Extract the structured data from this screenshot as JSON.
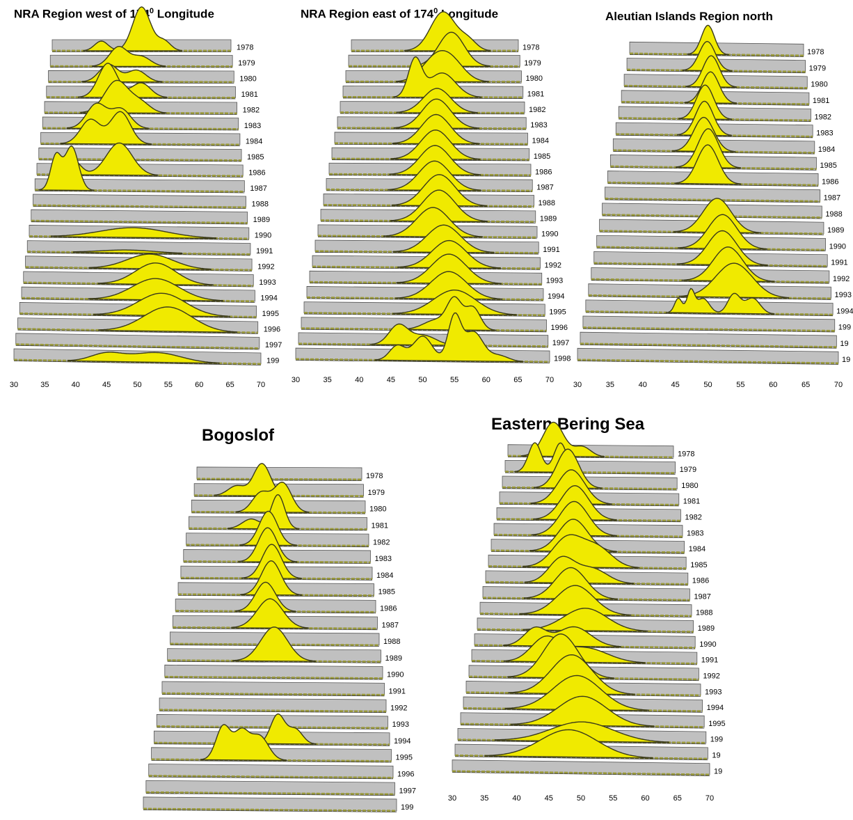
{
  "titles": {
    "p1": {
      "pre": "NRA Region west of 174",
      "sup": "0",
      "post": " Longitude"
    },
    "p2": {
      "pre": "NRA Region east of 174",
      "sup": "0",
      "post": " Longitude"
    },
    "p3": {
      "pre": "Aleutian Islands Region north",
      "sup": "",
      "post": ""
    },
    "p4": {
      "pre": "Bogoslof",
      "sup": "",
      "post": ""
    },
    "p5": {
      "pre": "Eastern Bering Sea",
      "sup": "",
      "post": ""
    }
  },
  "colors": {
    "fill": "#f0ea00",
    "floor": "#c0c0c0",
    "outline": "#3a3a1a",
    "dashes": "#9a9a3a"
  },
  "chart_data": [
    {
      "id": "p1",
      "type": "area",
      "xlim": [
        30,
        70
      ],
      "xticks": [
        30,
        35,
        40,
        45,
        50,
        55,
        60,
        65,
        70
      ],
      "years": [
        "1978",
        "1979",
        "1980",
        "1981",
        "1982",
        "1983",
        "1984",
        "1985",
        "1986",
        "1987",
        "1988",
        "1989",
        "1990",
        "1991",
        "1992",
        "1993",
        "1994",
        "1995",
        "1996",
        "1997",
        "199"
      ],
      "series": [
        {
          "peaks": [
            [
              50,
              4.5,
              2
            ],
            [
              41,
              1,
              1.5
            ],
            [
              55,
              1,
              1.5
            ]
          ]
        },
        {
          "peaks": [
            [
              45,
              2,
              2
            ],
            [
              50,
              1,
              2
            ]
          ]
        },
        {
          "peaks": [
            [
              43,
              1.8,
              2
            ],
            [
              49,
              1.2,
              2
            ]
          ]
        },
        {
          "peaks": [
            [
              43,
              3.5,
              2
            ],
            [
              50,
              1.5,
              2
            ]
          ]
        },
        {
          "peaks": [
            [
              45,
              3.3,
              2.5
            ],
            [
              50,
              1,
              2
            ]
          ]
        },
        {
          "peaks": [
            [
              41,
              2.5,
              2
            ],
            [
              46,
              2,
              2
            ]
          ]
        },
        {
          "peaks": [
            [
              40,
              2.5,
              2
            ],
            [
              46,
              3.3,
              2
            ]
          ]
        },
        {
          "peaks": []
        },
        {
          "peaks": [
            [
              37,
              1.5,
              1.5
            ],
            [
              46,
              3.3,
              2.5
            ]
          ]
        },
        {
          "peaks": [
            [
              34,
              3.5,
              1
            ],
            [
              37,
              4.5,
              1.3
            ]
          ]
        },
        {
          "peaks": []
        },
        {
          "peaks": []
        },
        {
          "peaks": [
            [
              49,
              1,
              6
            ]
          ]
        },
        {
          "peaks": [
            [
              48,
              0.3,
              5
            ]
          ]
        },
        {
          "peaks": [
            [
              52,
              1.5,
              4
            ]
          ]
        },
        {
          "peaks": [
            [
              53,
              2.2,
              3.5
            ]
          ]
        },
        {
          "peaks": [
            [
              53,
              2.2,
              4
            ]
          ]
        },
        {
          "peaks": [
            [
              54,
              2.3,
              4
            ]
          ]
        },
        {
          "peaks": [
            [
              55,
              2.5,
              4
            ]
          ]
        },
        {
          "peaks": []
        },
        {
          "peaks": [
            [
              45,
              0.8,
              2.5
            ],
            [
              53,
              1,
              4
            ]
          ]
        }
      ]
    },
    {
      "id": "p2",
      "type": "area",
      "xlim": [
        30,
        70
      ],
      "xticks": [
        30,
        35,
        40,
        45,
        50,
        55,
        60,
        65,
        70
      ],
      "years": [
        "1978",
        "1979",
        "1980",
        "1981",
        "1982",
        "1983",
        "1984",
        "1985",
        "1986",
        "1987",
        "1988",
        "1989",
        "1990",
        "1991",
        "1992",
        "1993",
        "1994",
        "1995",
        "1996",
        "1997",
        "1998"
      ],
      "series": [
        {
          "peaks": [
            [
              52,
              4,
              3
            ],
            [
              58,
              1,
              2
            ]
          ]
        },
        {
          "peaks": [
            [
              54,
              3.5,
              3
            ]
          ]
        },
        {
          "peaks": [
            [
              50,
              2,
              3
            ],
            [
              54,
              2,
              3
            ]
          ]
        },
        {
          "peaks": [
            [
              46,
              3.8,
              1.5
            ],
            [
              52,
              2.5,
              3
            ]
          ]
        },
        {
          "peaks": [
            [
              51,
              2.5,
              3
            ]
          ]
        },
        {
          "peaks": [
            [
              51,
              3,
              3
            ]
          ]
        },
        {
          "peaks": [
            [
              51,
              3,
              3
            ]
          ]
        },
        {
          "peaks": [
            [
              51,
              3,
              3
            ]
          ]
        },
        {
          "peaks": [
            [
              51,
              3,
              3
            ]
          ]
        },
        {
          "peaks": [
            [
              51,
              3,
              3
            ]
          ]
        },
        {
          "peaks": [
            [
              52,
              3.2,
              3
            ]
          ]
        },
        {
          "peaks": [
            [
              52,
              3.2,
              3
            ]
          ]
        },
        {
          "peaks": [
            [
              51,
              3,
              3
            ]
          ]
        },
        {
          "peaks": [
            [
              53,
              2.8,
              3
            ]
          ]
        },
        {
          "peaks": [
            [
              54,
              2.8,
              3
            ]
          ]
        },
        {
          "peaks": [
            [
              54,
              3,
              3
            ]
          ]
        },
        {
          "peaks": [
            [
              54,
              2.8,
              3
            ]
          ]
        },
        {
          "peaks": [
            [
              55,
              2.5,
              3.5
            ]
          ]
        },
        {
          "peaks": [
            [
              55,
              3,
              1.2
            ],
            [
              58,
              2.3,
              1.2
            ],
            [
              52,
              1,
              2
            ]
          ]
        },
        {
          "peaks": [
            [
              46,
              2,
              1.5
            ],
            [
              50,
              1,
              2
            ]
          ]
        },
        {
          "peaks": [
            [
              46,
              1.5,
              1.2
            ],
            [
              50,
              2.5,
              1.5
            ],
            [
              55,
              4.5,
              1
            ],
            [
              58,
              3,
              1.5
            ],
            [
              62,
              0.6,
              1.5
            ]
          ]
        }
      ]
    },
    {
      "id": "p3",
      "type": "area",
      "xlim": [
        30,
        70
      ],
      "xticks": [
        30,
        35,
        40,
        45,
        50,
        55,
        60,
        65,
        70
      ],
      "years": [
        "1978",
        "1979",
        "1980",
        "1981",
        "1982",
        "1983",
        "1984",
        "1985",
        "1986",
        "1987",
        "1988",
        "1989",
        "1990",
        "1991",
        "1992",
        "1993",
        "1994",
        "199",
        "19",
        "19"
      ],
      "series": [
        {
          "peaks": [
            [
              48,
              3,
              1.5
            ]
          ]
        },
        {
          "peaks": [
            [
              48,
              3,
              1.8
            ]
          ]
        },
        {
          "peaks": [
            [
              49,
              3.2,
              1.8
            ]
          ]
        },
        {
          "peaks": [
            [
              49,
              3.2,
              1.8
            ]
          ]
        },
        {
          "peaks": [
            [
              48,
              3.5,
              1.8
            ]
          ]
        },
        {
          "peaks": [
            [
              48,
              3.5,
              1.8
            ]
          ]
        },
        {
          "peaks": [
            [
              48,
              3.5,
              2
            ]
          ]
        },
        {
          "peaks": [
            [
              49,
              4,
              2
            ]
          ]
        },
        {
          "peaks": [
            [
              49,
              4,
              2
            ]
          ]
        },
        {
          "peaks": []
        },
        {
          "peaks": []
        },
        {
          "peaks": [
            [
              51,
              3.5,
              2.5
            ]
          ]
        },
        {
          "peaks": [
            [
              52,
              3.5,
              2.5
            ]
          ]
        },
        {
          "peaks": [
            [
              52,
              3.5,
              2.5
            ]
          ]
        },
        {
          "peaks": [
            [
              53,
              3.5,
              2.5
            ]
          ]
        },
        {
          "peaks": [
            [
              54,
              3.5,
              3
            ]
          ]
        },
        {
          "peaks": [
            [
              45,
              1.5,
              0.6
            ],
            [
              47,
              2.3,
              0.6
            ],
            [
              49,
              1.5,
              1
            ],
            [
              54,
              2,
              1
            ],
            [
              57,
              1.6,
              1.2
            ]
          ]
        },
        {
          "peaks": []
        },
        {
          "peaks": []
        },
        {
          "peaks": []
        }
      ]
    },
    {
      "id": "p4",
      "type": "area",
      "xlim": [
        30,
        70
      ],
      "xticks": [
        30,
        35,
        40,
        45,
        50,
        55,
        60,
        65,
        70
      ],
      "years": [
        "1978",
        "1979",
        "1980",
        "1981",
        "1982",
        "1983",
        "1984",
        "1985",
        "1986",
        "1987",
        "1988",
        "1989",
        "1990",
        "1991",
        "1992",
        "1993",
        "1994",
        "1995",
        "1996",
        "1997",
        "199"
      ],
      "series": [
        {
          "peaks": []
        },
        {
          "peaks": [
            [
              46,
              3.3,
              2
            ],
            [
              40,
              1,
              2
            ]
          ]
        },
        {
          "peaks": [
            [
              51,
              3,
              2
            ],
            [
              46,
              2,
              2
            ]
          ]
        },
        {
          "peaks": [
            [
              50,
              3.5,
              1.5
            ],
            [
              44,
              1,
              2
            ]
          ]
        },
        {
          "peaks": [
            [
              48,
              3.5,
              2
            ]
          ]
        },
        {
          "peaks": [
            [
              48,
              3.5,
              2
            ]
          ]
        },
        {
          "peaks": [
            [
              49,
              3.5,
              2
            ]
          ]
        },
        {
          "peaks": [
            [
              49,
              3.5,
              2
            ]
          ]
        },
        {
          "peaks": [
            [
              48,
              3,
              2
            ]
          ]
        },
        {
          "peaks": [
            [
              49,
              3,
              2.5
            ]
          ]
        },
        {
          "peaks": []
        },
        {
          "peaks": [
            [
              50,
              3.5,
              2.5
            ]
          ]
        },
        {
          "peaks": []
        },
        {
          "peaks": []
        },
        {
          "peaks": []
        },
        {
          "peaks": []
        },
        {
          "peaks": [
            [
              51,
              3,
              1.2
            ],
            [
              54,
              1.5,
              1.2
            ]
          ]
        },
        {
          "peaks": [
            [
              42,
              3.5,
              1.2
            ],
            [
              45,
              2.8,
              1.2
            ],
            [
              48,
              2.5,
              1.5
            ]
          ]
        },
        {
          "peaks": []
        },
        {
          "peaks": []
        },
        {
          "peaks": []
        }
      ]
    },
    {
      "id": "p5",
      "type": "area",
      "xlim": [
        30,
        70
      ],
      "xticks": [
        30,
        35,
        40,
        45,
        50,
        55,
        60,
        65,
        70
      ],
      "years": [
        "1978",
        "1979",
        "1980",
        "1981",
        "1982",
        "1983",
        "1984",
        "1985",
        "1986",
        "1987",
        "1988",
        "1989",
        "1990",
        "1991",
        "1992",
        "1993",
        "1994",
        "1995",
        "199",
        "19",
        "19"
      ],
      "series": [
        {
          "peaks": [
            [
              41,
              3.5,
              2.5
            ],
            [
              48,
              1,
              2
            ]
          ]
        },
        {
          "peaks": [
            [
              37,
              3,
              1.5
            ],
            [
              43,
              3,
              1.5
            ]
          ]
        },
        {
          "peaks": [
            [
              45,
              4,
              2.5
            ]
          ]
        },
        {
          "peaks": [
            [
              46,
              3.5,
              3
            ]
          ]
        },
        {
          "peaks": [
            [
              47,
              3.5,
              3
            ]
          ]
        },
        {
          "peaks": [
            [
              47,
              3.5,
              3
            ]
          ]
        },
        {
          "peaks": [
            [
              47,
              3.3,
              3
            ]
          ]
        },
        {
          "peaks": [
            [
              46,
              3,
              3
            ],
            [
              52,
              2,
              3
            ]
          ]
        },
        {
          "peaks": [
            [
              45,
              2.5,
              2.5
            ],
            [
              51,
              1.5,
              3
            ]
          ]
        },
        {
          "peaks": [
            [
              47,
              3.2,
              3
            ]
          ]
        },
        {
          "peaks": [
            [
              48,
              3,
              3.5
            ]
          ]
        },
        {
          "peaks": [
            [
              50,
              2.3,
              4
            ]
          ]
        },
        {
          "peaks": [
            [
              41,
              1.8,
              2
            ],
            [
              48,
              2,
              3
            ]
          ]
        },
        {
          "peaks": [
            [
              43,
              2.3,
              2.5
            ],
            [
              50,
              1.5,
              4
            ]
          ]
        },
        {
          "peaks": [
            [
              46,
              4.5,
              3
            ]
          ]
        },
        {
          "peaks": [
            [
              48,
              4,
              3.5
            ]
          ]
        },
        {
          "peaks": [
            [
              49,
              3.5,
              4
            ]
          ]
        },
        {
          "peaks": [
            [
              50,
              3,
              4
            ]
          ]
        },
        {
          "peaks": [
            [
              50,
              2,
              5
            ]
          ]
        },
        {
          "peaks": [
            [
              48,
              2.8,
              4.5
            ]
          ]
        },
        {
          "peaks": []
        }
      ]
    }
  ]
}
